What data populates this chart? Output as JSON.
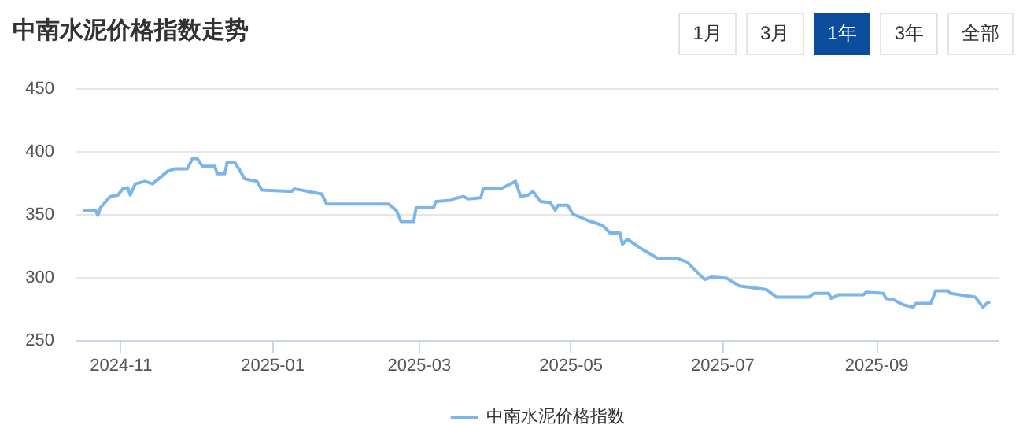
{
  "chart_data": {
    "type": "line",
    "title": "中南水泥价格指数走势",
    "annotations": [
      "1月",
      "3月",
      "1年",
      "3年",
      "全部"
    ],
    "x": [
      "2024-10-17",
      "2024-10-22",
      "2024-10-23",
      "2024-10-24",
      "2024-10-28",
      "2024-10-31",
      "2024-11-02",
      "2024-11-04",
      "2024-11-05",
      "2024-11-07",
      "2024-11-11",
      "2024-11-14",
      "2024-11-20",
      "2024-11-23",
      "2024-11-28",
      "2024-11-30",
      "2024-12-02",
      "2024-12-04",
      "2024-12-09",
      "2024-12-10",
      "2024-12-13",
      "2024-12-14",
      "2024-12-17",
      "2024-12-19",
      "2024-12-21",
      "2024-12-26",
      "2024-12-28",
      "2025-01-09",
      "2025-01-10",
      "2025-01-13",
      "2025-01-18",
      "2025-01-21",
      "2025-01-23",
      "2025-02-06",
      "2025-02-17",
      "2025-02-20",
      "2025-02-22",
      "2025-02-27",
      "2025-02-28",
      "2025-03-07",
      "2025-03-08",
      "2025-03-14",
      "2025-03-15",
      "2025-03-19",
      "2025-03-21",
      "2025-03-26",
      "2025-03-27",
      "2025-04-03",
      "2025-04-09",
      "2025-04-11",
      "2025-04-14",
      "2025-04-16",
      "2025-04-19",
      "2025-04-23",
      "2025-04-25",
      "2025-04-26",
      "2025-04-30",
      "2025-05-02",
      "2025-05-08",
      "2025-05-14",
      "2025-05-17",
      "2025-05-21",
      "2025-05-22",
      "2025-05-24",
      "2025-05-30",
      "2025-06-05",
      "2025-06-13",
      "2025-06-17",
      "2025-06-21",
      "2025-06-24",
      "2025-06-27",
      "2025-07-03",
      "2025-07-08",
      "2025-07-19",
      "2025-07-23",
      "2025-08-05",
      "2025-08-07",
      "2025-08-13",
      "2025-08-14",
      "2025-08-17",
      "2025-08-27",
      "2025-08-28",
      "2025-09-04",
      "2025-09-05",
      "2025-09-08",
      "2025-09-12",
      "2025-09-16",
      "2025-09-17",
      "2025-09-23",
      "2025-09-25",
      "2025-09-30",
      "2025-10-01",
      "2025-10-11",
      "2025-10-14",
      "2025-10-16",
      "2025-10-17"
    ],
    "series": [
      {
        "name": "中南水泥价格指数",
        "color": "#7cb5ec",
        "values": [
          353,
          353,
          349,
          355,
          364,
          365,
          370,
          371,
          365,
          374,
          376,
          374,
          384,
          386,
          386,
          394,
          394,
          388,
          388,
          382,
          382,
          391,
          391,
          385,
          378,
          376,
          369,
          368,
          370,
          369,
          367,
          366,
          358,
          358,
          358,
          353,
          344,
          344,
          355,
          355,
          360,
          361,
          362,
          364,
          362,
          363,
          370,
          370,
          376,
          364,
          365,
          368,
          360,
          359,
          353,
          357,
          357,
          350,
          345,
          341,
          335,
          335,
          326,
          330,
          322,
          315,
          315,
          312,
          304,
          298,
          300,
          299,
          293,
          290,
          284,
          284,
          287,
          287,
          283,
          286,
          286,
          288,
          287,
          283,
          282,
          278,
          276,
          279,
          279,
          289,
          289,
          287,
          284,
          276,
          280,
          280
        ]
      }
    ],
    "xlim": [
      "2024-10-14",
      "2025-10-20"
    ],
    "xticks": [
      "2024-11",
      "2025-01",
      "2025-03",
      "2025-05",
      "2025-07",
      "2025-09"
    ],
    "ylim": [
      250,
      450
    ],
    "yticks": [
      250,
      300,
      350,
      400,
      450
    ],
    "grid": "y",
    "legend": "bottom",
    "marker": "none",
    "line_style": "solid"
  }
}
